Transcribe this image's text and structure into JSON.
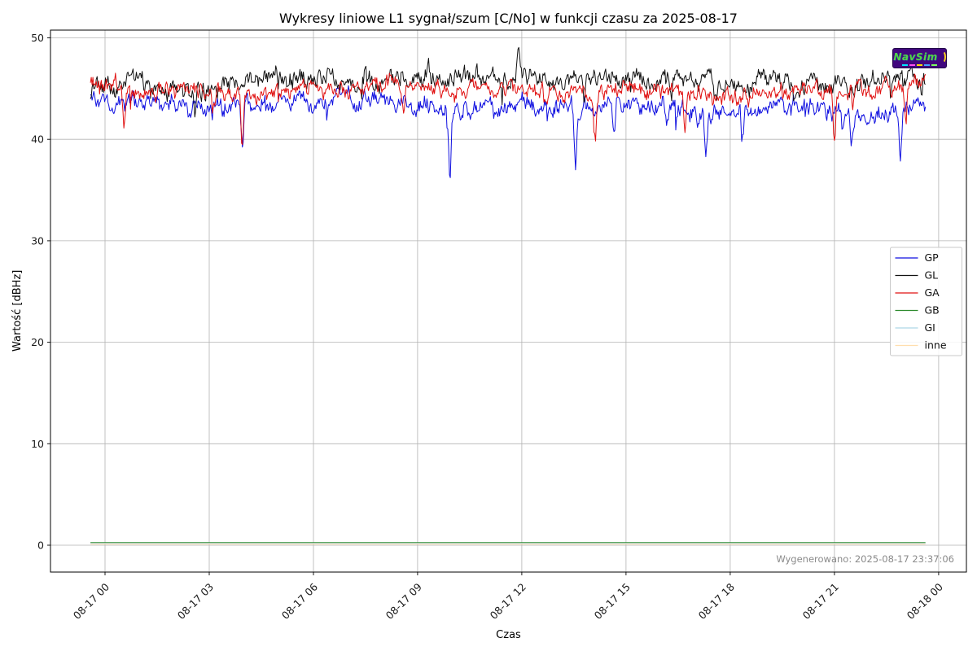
{
  "figure": {
    "generated_label": "Wygenerowano: 2025-08-17 23:37:06",
    "logo_text": "NavSim"
  },
  "colors": {
    "background": "#ffffff",
    "grid": "#b3b3b3",
    "axis": "#000000",
    "tick_text": "#1a1a1a",
    "ts_text": "#8a8a8a",
    "logo_bg": "#41077e",
    "logo_fg": "#54d247",
    "logo_arc": "#ffd71e"
  },
  "chart_data": {
    "type": "line",
    "title": "Wykresy liniowe L1 sygnał/szum [C/No] w funkcji czasu za 2025-08-17",
    "xlabel": "Czas",
    "ylabel": "Wartość [dBHz]",
    "x_tick_labels": [
      "08-17 00",
      "08-17 03",
      "08-17 06",
      "08-17 09",
      "08-17 12",
      "08-17 15",
      "08-17 18",
      "08-17 21",
      "08-18 00"
    ],
    "x_tick_hours": [
      0,
      3,
      6,
      9,
      12,
      15,
      18,
      21,
      24
    ],
    "y_ticks": [
      0,
      10,
      20,
      30,
      40,
      50
    ],
    "xlim_hours": [
      -1.57,
      24.8
    ],
    "ylim": [
      -2.65,
      50.76
    ],
    "grid": true,
    "legend_position": "center right",
    "time_range_hours": [
      -0.42,
      23.62
    ],
    "anchor_start_hour": -1,
    "noise_seed": 20250817,
    "series": [
      {
        "name": "GP",
        "color": "#0f0fe0",
        "style": "noisy",
        "noise": 0.62,
        "anchors": [
          43.8,
          43.8,
          43.5,
          43.6,
          43.3,
          43.2,
          43.7,
          43.6,
          43.9,
          43.8,
          43.3,
          42.8,
          43.3,
          43.6,
          43.2,
          42.9,
          43.4,
          43.2,
          42.7,
          43.0,
          43.3,
          43.1,
          42.9,
          42.4,
          43.3,
          43.5
        ],
        "dips": [
          [
            3.95,
            3.8
          ],
          [
            9.93,
            6.5
          ],
          [
            13.55,
            5.2
          ],
          [
            14.65,
            3.6
          ],
          [
            17.3,
            4.7
          ],
          [
            18.35,
            3.2
          ],
          [
            21.5,
            2.8
          ],
          [
            22.9,
            5.0
          ]
        ]
      },
      {
        "name": "GL",
        "color": "#111111",
        "style": "noisy",
        "noise": 0.68,
        "anchors": [
          45.2,
          45.2,
          45.5,
          45.0,
          44.8,
          45.6,
          46.0,
          46.1,
          45.9,
          45.7,
          46.3,
          46.0,
          46.2,
          46.4,
          45.4,
          45.9,
          45.7,
          45.9,
          46.0,
          45.4,
          46.2,
          45.6,
          45.8,
          45.9,
          46.2,
          45.8
        ],
        "dips": [
          [
            2.6,
            2.2
          ],
          [
            13.8,
            2.8
          ],
          [
            16.3,
            2.0
          ]
        ],
        "peaks": [
          [
            4.9,
            1.2
          ],
          [
            7.45,
            1.9
          ],
          [
            9.3,
            1.7
          ],
          [
            11.9,
            2.3
          ]
        ]
      },
      {
        "name": "GA",
        "color": "#e01010",
        "style": "noisy",
        "noise": 0.55,
        "anchors": [
          45.3,
          45.3,
          44.8,
          45.0,
          44.9,
          44.4,
          44.9,
          45.2,
          45.1,
          45.5,
          45.3,
          44.8,
          45.2,
          44.9,
          44.5,
          44.6,
          45.0,
          44.7,
          44.6,
          44.4,
          44.8,
          44.9,
          44.7,
          44.8,
          45.4,
          45.2
        ],
        "dips": [
          [
            0.55,
            3.6
          ],
          [
            3.95,
            4.8
          ],
          [
            8.6,
            2.6
          ],
          [
            14.1,
            3.8
          ],
          [
            16.7,
            4.6
          ],
          [
            21.0,
            4.6
          ],
          [
            23.05,
            4.2
          ]
        ]
      },
      {
        "name": "GB",
        "color": "#2e8b2e",
        "style": "flat",
        "value": 0.25
      },
      {
        "name": "GI",
        "color": "#add8e6",
        "style": "flat",
        "value": 0.18
      },
      {
        "name": "inne",
        "color": "#ffdead",
        "style": "flat",
        "value": 0.12
      }
    ]
  }
}
